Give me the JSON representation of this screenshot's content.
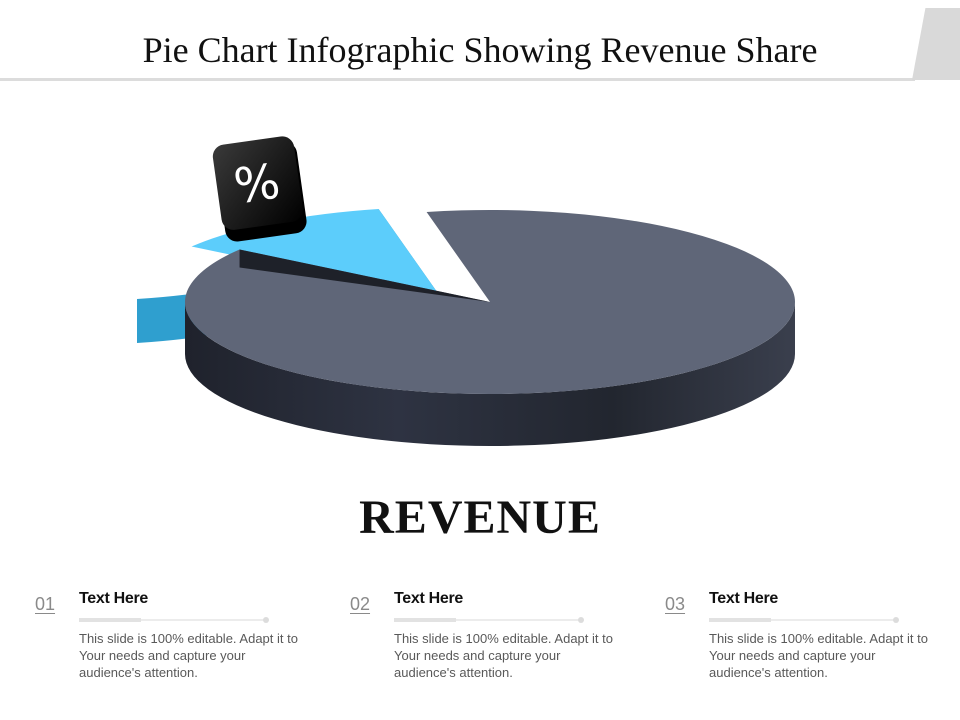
{
  "title": "Pie Chart Infographic Showing Revenue Share",
  "center_label": "REVENUE",
  "badge_symbol": "%",
  "colors": {
    "highlight_slice_top": "#5ccdfb",
    "highlight_slice_side": "#2f9fcf",
    "main_slice_top": "#5f6678",
    "main_slice_side": "#262a35",
    "badge": "#111111"
  },
  "chart_data": {
    "type": "pie",
    "title": "",
    "values": [
      88,
      12
    ],
    "style": "3d-exploded",
    "exploded_index": 1
  },
  "items": [
    {
      "number": "01",
      "title": "Text Here",
      "body": "This slide is 100% editable. Adapt it to Your needs and capture your audience's attention."
    },
    {
      "number": "02",
      "title": "Text Here",
      "body": "This slide is 100% editable. Adapt it to Your needs and capture your audience's attention."
    },
    {
      "number": "03",
      "title": "Text Here",
      "body": "This slide is 100% editable. Adapt it to Your needs and capture your audience's attention."
    }
  ]
}
